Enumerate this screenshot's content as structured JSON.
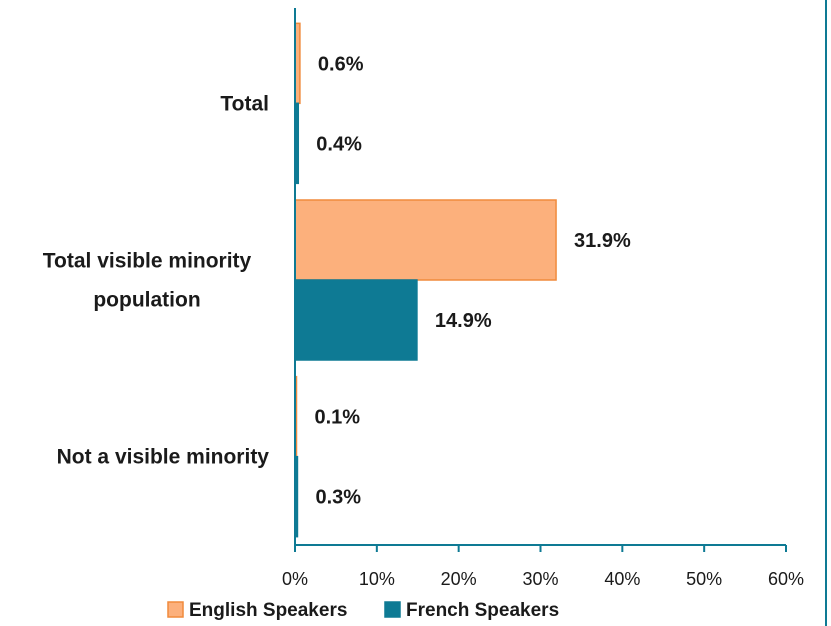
{
  "chart_data": {
    "type": "bar",
    "orientation": "horizontal",
    "categories": [
      "Total",
      "Total visible minority population",
      "Not a visible minority"
    ],
    "category_lines": [
      [
        "Total"
      ],
      [
        "Total visible minority",
        "population"
      ],
      [
        "Not a visible minority"
      ]
    ],
    "series": [
      {
        "name": "English Speakers",
        "values": [
          0.6,
          31.9,
          0.1
        ],
        "labels": [
          "0.6%",
          "31.9%",
          "0.1%"
        ],
        "color": "#FCB07C",
        "stroke": "#F08A3C"
      },
      {
        "name": "French Speakers",
        "values": [
          0.4,
          14.9,
          0.3
        ],
        "labels": [
          "0.4%",
          "14.9%",
          "0.3%"
        ],
        "color": "#0E7A94",
        "stroke": "#0E7A94"
      }
    ],
    "xlim": [
      0,
      60
    ],
    "x_ticks": [
      0,
      10,
      20,
      30,
      40,
      50,
      60
    ],
    "x_tick_labels": [
      "0%",
      "10%",
      "20%",
      "30%",
      "40%",
      "50%",
      "60%"
    ],
    "grid": false,
    "legend_position": "bottom",
    "axis_color": "#0E7A94",
    "border_color": "#0E7A94"
  }
}
